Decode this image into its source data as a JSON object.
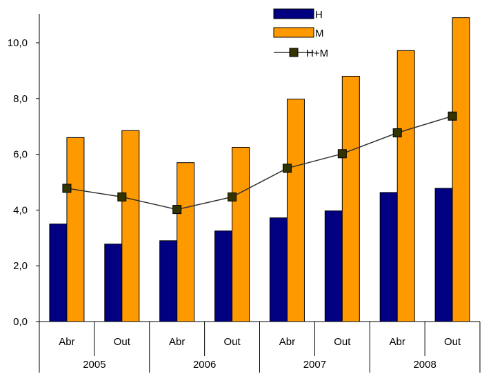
{
  "chart_data": {
    "type": "bar",
    "periods": [
      "Abr",
      "Out",
      "Abr",
      "Out",
      "Abr",
      "Out",
      "Abr",
      "Out"
    ],
    "years": [
      "2005",
      "2006",
      "2007",
      "2008"
    ],
    "ylim": [
      0,
      11
    ],
    "ytick_labels": [
      "0,0",
      "2,0",
      "4,0",
      "6,0",
      "8,0",
      "10,0"
    ],
    "ytick_values": [
      0,
      2,
      4,
      6,
      8,
      10
    ],
    "series": [
      {
        "name": "H",
        "kind": "bar",
        "color": "#000080",
        "values": [
          3.5,
          2.78,
          2.9,
          3.25,
          3.72,
          3.97,
          4.63,
          4.78
        ]
      },
      {
        "name": "M",
        "kind": "bar",
        "color": "#FF9900",
        "values": [
          6.6,
          6.85,
          5.7,
          6.25,
          7.98,
          8.8,
          9.72,
          10.9
        ]
      },
      {
        "name": "H+M",
        "kind": "line",
        "color": "#333333",
        "marker_color": "#333300",
        "values": [
          4.78,
          4.47,
          4.02,
          4.47,
          5.5,
          6.02,
          6.77,
          7.37
        ]
      }
    ],
    "legend": "top",
    "grid": false
  }
}
